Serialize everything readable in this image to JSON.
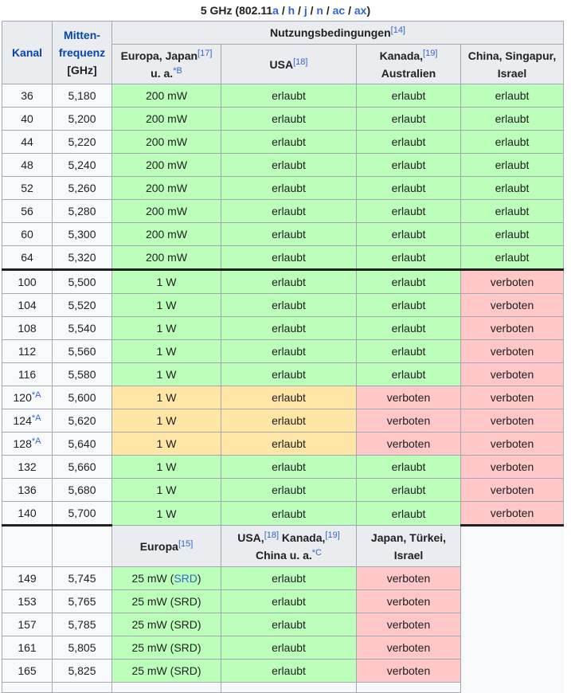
{
  "caption": {
    "prefix": "5 GHz (802.11",
    "links": [
      "a",
      "h",
      "j",
      "n",
      "ac",
      "ax"
    ],
    "suffix": ")"
  },
  "headers": {
    "kanal": "Kanal",
    "mitten_line1": "Mitten-",
    "mitten_line2": "frequenz",
    "mitten_unit": "[GHz]",
    "nutzung": "Nutzungsbedingungen",
    "nutzung_ref": "[14]",
    "eu_japan_line1": "Europa, Japan",
    "eu_japan_ref": "[17]",
    "eu_japan_line2": "u. a.",
    "eu_japan_note": "*B",
    "usa": "USA",
    "usa_ref": "[18]",
    "kanada_line1": "Kanada,",
    "kanada_ref": "[19]",
    "kanada_line2": "Australien",
    "china_line1": "China, Singapur,",
    "china_line2": "Israel"
  },
  "group1": [
    {
      "ch": "36",
      "f": "5,180",
      "eu": "200 mW",
      "usa": "erlaubt",
      "ca": "erlaubt",
      "cn": "erlaubt"
    },
    {
      "ch": "40",
      "f": "5,200",
      "eu": "200 mW",
      "usa": "erlaubt",
      "ca": "erlaubt",
      "cn": "erlaubt"
    },
    {
      "ch": "44",
      "f": "5,220",
      "eu": "200 mW",
      "usa": "erlaubt",
      "ca": "erlaubt",
      "cn": "erlaubt"
    },
    {
      "ch": "48",
      "f": "5,240",
      "eu": "200 mW",
      "usa": "erlaubt",
      "ca": "erlaubt",
      "cn": "erlaubt"
    },
    {
      "ch": "52",
      "f": "5,260",
      "eu": "200 mW",
      "usa": "erlaubt",
      "ca": "erlaubt",
      "cn": "erlaubt"
    },
    {
      "ch": "56",
      "f": "5,280",
      "eu": "200 mW",
      "usa": "erlaubt",
      "ca": "erlaubt",
      "cn": "erlaubt"
    },
    {
      "ch": "60",
      "f": "5,300",
      "eu": "200 mW",
      "usa": "erlaubt",
      "ca": "erlaubt",
      "cn": "erlaubt"
    },
    {
      "ch": "64",
      "f": "5,320",
      "eu": "200 mW",
      "usa": "erlaubt",
      "ca": "erlaubt",
      "cn": "erlaubt"
    }
  ],
  "group2": [
    {
      "ch": "100",
      "f": "5,500",
      "eu": "1 W",
      "usa": "erlaubt",
      "ca": "erlaubt",
      "cn": "verboten"
    },
    {
      "ch": "104",
      "f": "5,520",
      "eu": "1 W",
      "usa": "erlaubt",
      "ca": "erlaubt",
      "cn": "verboten"
    },
    {
      "ch": "108",
      "f": "5,540",
      "eu": "1 W",
      "usa": "erlaubt",
      "ca": "erlaubt",
      "cn": "verboten"
    },
    {
      "ch": "112",
      "f": "5,560",
      "eu": "1 W",
      "usa": "erlaubt",
      "ca": "erlaubt",
      "cn": "verboten"
    },
    {
      "ch": "116",
      "f": "5,580",
      "eu": "1 W",
      "usa": "erlaubt",
      "ca": "erlaubt",
      "cn": "verboten"
    },
    {
      "ch": "120",
      "note": "*A",
      "f": "5,600",
      "eu": "1 W",
      "usa": "erlaubt",
      "ca": "verboten",
      "cn": "verboten"
    },
    {
      "ch": "124",
      "note": "*A",
      "f": "5,620",
      "eu": "1 W",
      "usa": "erlaubt",
      "ca": "verboten",
      "cn": "verboten"
    },
    {
      "ch": "128",
      "note": "*A",
      "f": "5,640",
      "eu": "1 W",
      "usa": "erlaubt",
      "ca": "verboten",
      "cn": "verboten"
    },
    {
      "ch": "132",
      "f": "5,660",
      "eu": "1 W",
      "usa": "erlaubt",
      "ca": "erlaubt",
      "cn": "verboten"
    },
    {
      "ch": "136",
      "f": "5,680",
      "eu": "1 W",
      "usa": "erlaubt",
      "ca": "erlaubt",
      "cn": "verboten"
    },
    {
      "ch": "140",
      "f": "5,700",
      "eu": "1 W",
      "usa": "erlaubt",
      "ca": "erlaubt",
      "cn": "verboten"
    }
  ],
  "sub_headers": {
    "europa": "Europa",
    "europa_ref": "[15]",
    "usa": "USA,",
    "usa_ref": "[18]",
    "kanada": " Kanada,",
    "kanada_ref": "[19]",
    "china": "China u. a.",
    "china_note": "*C",
    "japan_line1": "Japan, Türkei,",
    "japan_line2": "Israel"
  },
  "group3": [
    {
      "ch": "149",
      "f": "5,745",
      "eu_pre": "25 mW (",
      "eu_link": "SRD",
      "eu_post": ")",
      "usa": "erlaubt",
      "jp": "verboten"
    },
    {
      "ch": "153",
      "f": "5,765",
      "eu": "25 mW (SRD)",
      "usa": "erlaubt",
      "jp": "verboten"
    },
    {
      "ch": "157",
      "f": "5,785",
      "eu": "25 mW (SRD)",
      "usa": "erlaubt",
      "jp": "verboten"
    },
    {
      "ch": "161",
      "f": "5,805",
      "eu": "25 mW (SRD)",
      "usa": "erlaubt",
      "jp": "verboten"
    },
    {
      "ch": "165",
      "f": "5,825",
      "eu": "25 mW (SRD)",
      "usa": "erlaubt",
      "jp": "verboten"
    }
  ],
  "colors": {
    "allowed": "#bbffbb",
    "restricted": "#ffe5a6",
    "forbidden": "#ffc7c7",
    "header": "#eaecf0"
  }
}
